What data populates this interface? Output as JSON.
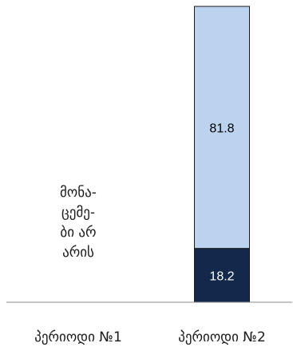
{
  "chart_data": {
    "type": "bar",
    "stacked": true,
    "categories": [
      "პერიოდი №1",
      "პერიოდი №2"
    ],
    "series": [
      {
        "values": [
          null,
          18.2
        ],
        "color": "#13294b",
        "label_color": "#ffffff"
      },
      {
        "values": [
          null,
          81.8
        ],
        "color": "#bcd3f0",
        "label_color": "#000000"
      }
    ],
    "ylim": [
      0,
      100
    ],
    "grid": false,
    "legend": "none",
    "no_data_note": [
      "მონა-",
      "ცემე-",
      "ბი არ",
      "არის"
    ]
  }
}
